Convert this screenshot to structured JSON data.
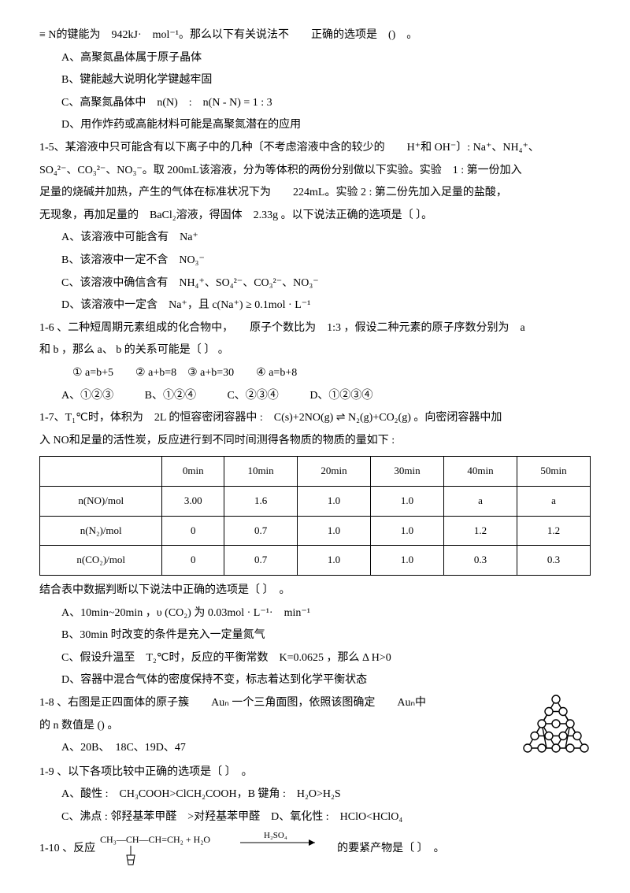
{
  "q14": {
    "stem": "≡ N的键能为　942kJ·　mol⁻¹。那么以下有关说法不　　正确的选项是　()　。",
    "A": "A、高聚氮晶体属于原子晶体",
    "B": "B、键能越大说明化学键越牢固",
    "C": "C、高聚氮晶体中　n(N)　:　n(N - N) = 1 : 3",
    "D": "D、用作炸药或高能材料可能是高聚氮潜在的应用"
  },
  "q15": {
    "stem1": "1-5、某溶液中只可能含有以下离子中的几种〔不考虑溶液中含的较少的　　H⁺和 OH⁻〕: Na⁺、NH₄⁺、",
    "stem2": "SO₄²⁻、CO₃²⁻、NO₃⁻。取 200mL该溶液，分为等体积的两份分别做以下实验。实验　1 : 第一份加入",
    "stem3": "足量的烧碱并加热，产生的气体在标准状况下为　　224mL。实验 2 : 第二份先加入足量的盐酸，",
    "stem4": "无现象，再加足量的　BaCl₂溶液，得固体　2.33g 。以下说法正确的选项是〔 〕。",
    "A": "A、该溶液中可能含有　Na⁺",
    "B": "B、该溶液中一定不含　NO₃⁻",
    "C": "C、该溶液中确信含有　NH₄⁺、SO₄²⁻、CO₃²⁻、NO₃⁻",
    "D": "D、该溶液中一定含　Na⁺，且 c(Na⁺) ≥ 0.1mol · L⁻¹"
  },
  "q16": {
    "stem1": "1-6 、二种短周期元素组成的化合物中，　　原子个数比为　1:3 ，假设二种元素的原子序数分别为　a",
    "stem2": "和 b ，那么 a、 b 的关系可能是〔 〕 。",
    "opts": "① a=b+5　　② a+b=8　③ a+b=30　　④ a=b+8",
    "A": "A、①②③",
    "B": "B、①②④",
    "C": "C、②③④",
    "D": "D、①②③④"
  },
  "q17": {
    "stem1": "1-7、T₁℃时，体积为　2L 的恒容密闭容器中 :　C(s)+2NO(g) ⇌ N₂(g)+CO₂(g) 。向密闭容器中加",
    "stem2": "入 NO和足量的活性炭，反应进行到不同时间测得各物质的物质的量如下 :",
    "table": {
      "headers": [
        "",
        "0min",
        "10min",
        "20min",
        "30min",
        "40min",
        "50min"
      ],
      "rows": [
        [
          "n(NO)/mol",
          "3.00",
          "1.6",
          "1.0",
          "1.0",
          "a",
          "a"
        ],
        [
          "n(N₂)/mol",
          "0",
          "0.7",
          "1.0",
          "1.0",
          "1.2",
          "1.2"
        ],
        [
          "n(CO₂)/mol",
          "0",
          "0.7",
          "1.0",
          "1.0",
          "0.3",
          "0.3"
        ]
      ]
    },
    "after": "结合表中数据判断以下说法中正确的选项是〔 〕　。",
    "A": "A、10min~20min ，υ (CO₂) 为 0.03mol · L⁻¹·　min⁻¹",
    "B": "B、30min 时改变的条件是充入一定量氮气",
    "C": "C、假设升温至　T₂℃时，反应的平衡常数　K=0.0625 ，那么 Δ H>0",
    "D": "D、容器中混合气体的密度保持不变，标志着达到化学平衡状态"
  },
  "q18": {
    "stem1": "1-8 、右图是正四面体的原子簇　　Auₙ 一个三角面图，依照该图确定　　Auₙ中",
    "stem2": "的 n 数值是 () 。",
    "opts": "A、20B、　18C、19D、47"
  },
  "q19": {
    "stem": "1-9 、以下各项比较中正确的选项是〔 〕　。",
    "A": "A、酸性 :　CH₃COOH>ClCH₂COOH，B 键角 :　H₂O>H₂S",
    "C": "C、沸点 : 邻羟基苯甲醛　>对羟基苯甲醛　D、氧化性 :　HClO<HClO₄"
  },
  "q110": {
    "pre": "1-10 、反应",
    "post": "的要紧产物是〔 〕　。",
    "reagent": "H₂SO₄",
    "reactant": "CH₃—CH—CH=CH₂ + H₂O"
  }
}
